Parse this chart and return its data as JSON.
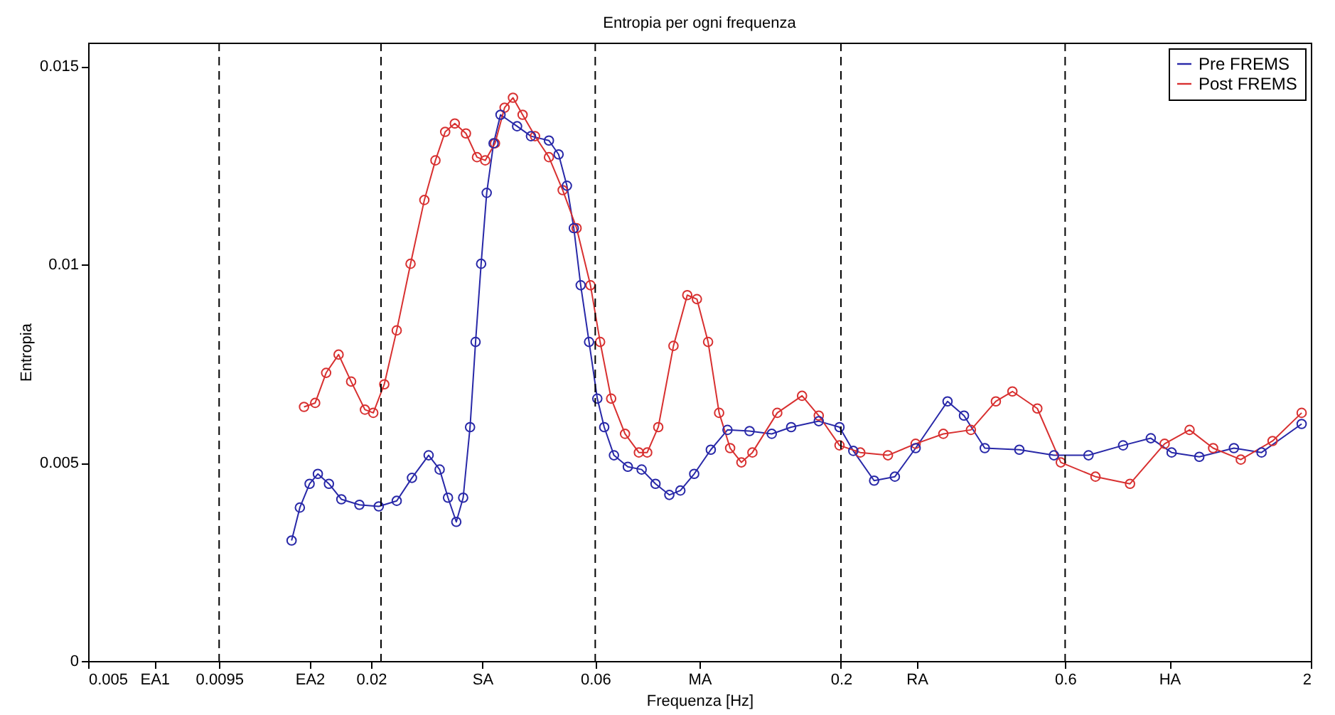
{
  "chart_data": {
    "type": "line",
    "title": "Entropia per ogni frequenza",
    "xlabel": "Frequenza [Hz]",
    "ylabel": "Entropia",
    "log": "x",
    "marker": "circle",
    "line_style": "solid",
    "grid": false,
    "legend": "top right",
    "xlim": [
      0.005,
      2
    ],
    "ylim": [
      0,
      0.0156
    ],
    "xticks": [
      0.005,
      {
        "value": 0.00692,
        "label": "EA1"
      },
      0.0095,
      {
        "value": 0.0148,
        "label": "EA2"
      },
      0.02,
      {
        "value": 0.0345,
        "label": "SA"
      },
      0.06,
      {
        "value": 0.1,
        "label": "MA"
      },
      0.2,
      {
        "value": 0.29,
        "label": "RA"
      },
      0.6,
      {
        "value": 1,
        "label": "HA"
      },
      2
    ],
    "yticks": [
      0,
      0.005,
      0.01,
      0.015
    ],
    "ref_lines": [
      {
        "axis": "x",
        "value": 0.0095,
        "color": "#000000",
        "line_style": "dashed"
      },
      {
        "axis": "x",
        "value": 0.021,
        "color": "#000000",
        "line_style": "dashed"
      },
      {
        "axis": "x",
        "value": 0.06,
        "color": "#000000",
        "line_style": "dashed"
      },
      {
        "axis": "x",
        "value": 0.2,
        "color": "#000000",
        "line_style": "dashed"
      },
      {
        "axis": "x",
        "value": 0.6,
        "color": "#000000",
        "line_style": "dashed"
      }
    ],
    "series": [
      {
        "name": "Pre FREMS",
        "color": "#2828a8",
        "x": [
          0.01355,
          0.01411,
          0.0148,
          0.01541,
          0.01627,
          0.01729,
          0.01889,
          0.02077,
          0.02268,
          0.02444,
          0.02652,
          0.02799,
          0.02916,
          0.03037,
          0.03141,
          0.03249,
          0.03338,
          0.0343,
          0.03525,
          0.03646,
          0.03772,
          0.04091,
          0.04379,
          0.04782,
          0.05014,
          0.05222,
          0.05402,
          0.05587,
          0.05821,
          0.06061,
          0.0627,
          0.06576,
          0.07038,
          0.07532,
          0.08061,
          0.08626,
          0.09106,
          0.09744,
          0.1057,
          0.1147,
          0.1278,
          0.1425,
          0.1567,
          0.1794,
          0.1986,
          0.2125,
          0.2353,
          0.2605,
          0.2884,
          0.3372,
          0.3655,
          0.4047,
          0.4794,
          0.568,
          0.6729,
          0.797,
          0.913,
          1.011,
          1.158,
          1.372,
          1.571,
          1.912
        ],
        "values": [
          0.00304,
          0.00387,
          0.00447,
          0.00472,
          0.00447,
          0.00408,
          0.00394,
          0.0039,
          0.00404,
          0.00462,
          0.00519,
          0.00483,
          0.00412,
          0.00351,
          0.00412,
          0.0059,
          0.00805,
          0.01002,
          0.01181,
          0.01306,
          0.01378,
          0.01349,
          0.01324,
          0.01313,
          0.01278,
          0.01199,
          0.01092,
          0.00948,
          0.00805,
          0.00662,
          0.0059,
          0.00519,
          0.0049,
          0.00483,
          0.00447,
          0.00419,
          0.0043,
          0.00472,
          0.00533,
          0.00583,
          0.0058,
          0.00573,
          0.0059,
          0.00605,
          0.0059,
          0.0053,
          0.00455,
          0.00465,
          0.00537,
          0.00655,
          0.00619,
          0.00537,
          0.00533,
          0.00519,
          0.00519,
          0.00544,
          0.00562,
          0.00526,
          0.00515,
          0.00537,
          0.00526,
          0.00598
        ]
      },
      {
        "name": "Post FREMS",
        "color": "#d83030",
        "x": [
          0.0144,
          0.01521,
          0.01605,
          0.01706,
          0.01814,
          0.01941,
          0.02022,
          0.02134,
          0.02268,
          0.02427,
          0.02597,
          0.02742,
          0.02876,
          0.03015,
          0.03184,
          0.03361,
          0.035,
          0.03671,
          0.03848,
          0.04009,
          0.04203,
          0.04467,
          0.04782,
          0.05115,
          0.05476,
          0.05861,
          0.06145,
          0.06487,
          0.06943,
          0.0743,
          0.0774,
          0.08171,
          0.08803,
          0.09419,
          0.09874,
          0.1043,
          0.1101,
          0.1162,
          0.1228,
          0.1296,
          0.1464,
          0.1653,
          0.1794,
          0.1986,
          0.2199,
          0.2518,
          0.2884,
          0.3303,
          0.3781,
          0.4273,
          0.4634,
          0.5236,
          0.5874,
          0.6961,
          0.8246,
          0.977,
          1.104,
          1.239,
          1.419,
          1.658,
          1.912
        ],
        "values": [
          0.00641,
          0.00651,
          0.00727,
          0.00773,
          0.00705,
          0.00634,
          0.00626,
          0.00698,
          0.00834,
          0.01002,
          0.01163,
          0.01263,
          0.01335,
          0.01356,
          0.01331,
          0.01271,
          0.01263,
          0.01306,
          0.01396,
          0.01421,
          0.01378,
          0.01324,
          0.01271,
          0.01188,
          0.01092,
          0.00948,
          0.00805,
          0.00662,
          0.00573,
          0.00526,
          0.00526,
          0.0059,
          0.00795,
          0.00923,
          0.00913,
          0.00805,
          0.00626,
          0.00537,
          0.00501,
          0.00526,
          0.00626,
          0.00669,
          0.00619,
          0.00544,
          0.00526,
          0.00519,
          0.00548,
          0.00573,
          0.00583,
          0.00655,
          0.0068,
          0.00637,
          0.00501,
          0.00465,
          0.00447,
          0.00548,
          0.00583,
          0.00537,
          0.00508,
          0.00555,
          0.00626
        ]
      }
    ]
  }
}
